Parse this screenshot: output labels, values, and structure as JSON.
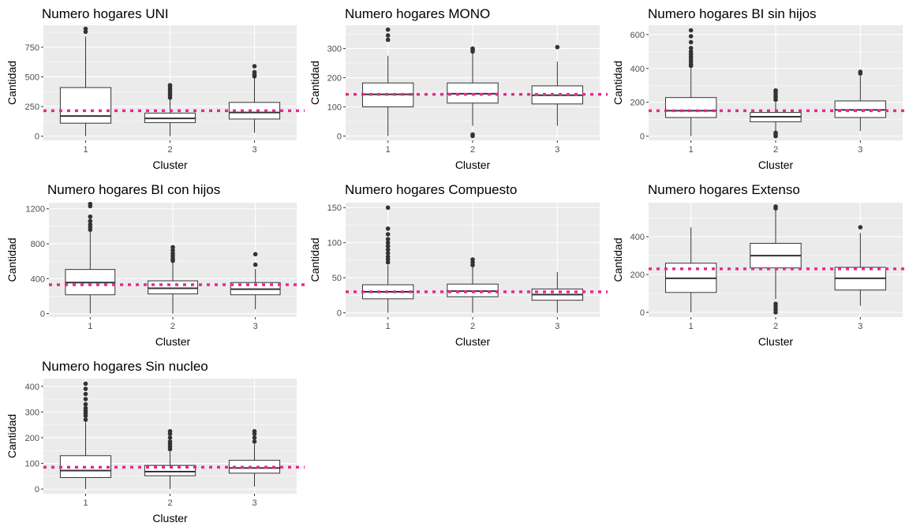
{
  "colors": {
    "panel_bg": "#ebebeb",
    "grid_major": "#ffffff",
    "box_fill": "#ffffff",
    "box_line": "#333333",
    "outlier": "#333333",
    "mean_line": "#e7298a",
    "tick_text": "#4d4d4d"
  },
  "chart_data": [
    {
      "type": "boxplot",
      "title": "Numero hogares UNI",
      "xlabel": "Cluster",
      "ylabel": "Cantidad",
      "categories": [
        "1",
        "2",
        "3"
      ],
      "ylim": [
        -35,
        935
      ],
      "yticks": [
        0,
        250,
        500,
        750
      ],
      "reference_line": {
        "style": "dotted",
        "y": 215
      },
      "boxes": [
        {
          "category": "1",
          "lower_whisker": 0,
          "q1": 110,
          "median": 170,
          "q3": 410,
          "upper_whisker": 840,
          "outliers": [
            880,
            905
          ]
        },
        {
          "category": "2",
          "lower_whisker": 0,
          "q1": 115,
          "median": 150,
          "q3": 195,
          "upper_whisker": 310,
          "outliers": [
            325,
            345,
            365,
            385,
            400,
            420,
            430
          ]
        },
        {
          "category": "3",
          "lower_whisker": 30,
          "q1": 145,
          "median": 200,
          "q3": 285,
          "upper_whisker": 490,
          "outliers": [
            505,
            520,
            540,
            590
          ]
        }
      ]
    },
    {
      "type": "boxplot",
      "title": "Numero hogares MONO",
      "xlabel": "Cluster",
      "ylabel": "Cantidad",
      "categories": [
        "1",
        "2",
        "3"
      ],
      "ylim": [
        -15,
        380
      ],
      "yticks": [
        0,
        100,
        200,
        300
      ],
      "reference_line": {
        "style": "dotted",
        "y": 143
      },
      "boxes": [
        {
          "category": "1",
          "lower_whisker": 0,
          "q1": 100,
          "median": 143,
          "q3": 182,
          "upper_whisker": 275,
          "outliers": [
            330,
            345,
            365
          ]
        },
        {
          "category": "2",
          "lower_whisker": 35,
          "q1": 113,
          "median": 145,
          "q3": 182,
          "upper_whisker": 285,
          "outliers": [
            0,
            5,
            290,
            295,
            300
          ]
        },
        {
          "category": "3",
          "lower_whisker": 35,
          "q1": 110,
          "median": 140,
          "q3": 172,
          "upper_whisker": 255,
          "outliers": [
            305
          ]
        }
      ]
    },
    {
      "type": "boxplot",
      "title": "Numero hogares BI sin hijos",
      "xlabel": "Cluster",
      "ylabel": "Cantidad",
      "categories": [
        "1",
        "2",
        "3"
      ],
      "ylim": [
        -25,
        655
      ],
      "yticks": [
        0,
        200,
        400,
        600
      ],
      "reference_line": {
        "style": "dotted",
        "y": 150
      },
      "boxes": [
        {
          "category": "1",
          "lower_whisker": 0,
          "q1": 110,
          "median": 150,
          "q3": 228,
          "upper_whisker": 400,
          "outliers": [
            415,
            425,
            440,
            455,
            470,
            485,
            500,
            520,
            555,
            590,
            625
          ]
        },
        {
          "category": "2",
          "lower_whisker": 30,
          "q1": 85,
          "median": 115,
          "q3": 140,
          "upper_whisker": 200,
          "outliers": [
            0,
            10,
            20,
            215,
            230,
            245,
            260,
            270
          ]
        },
        {
          "category": "3",
          "lower_whisker": 30,
          "q1": 110,
          "median": 155,
          "q3": 208,
          "upper_whisker": 355,
          "outliers": [
            370,
            380
          ]
        }
      ]
    },
    {
      "type": "boxplot",
      "title": "Numero hogares BI con hijos",
      "xlabel": "Cluster",
      "ylabel": "Cantidad",
      "categories": [
        "1",
        "2",
        "3"
      ],
      "ylim": [
        -40,
        1270
      ],
      "yticks": [
        0,
        400,
        800,
        1200
      ],
      "reference_line": {
        "style": "dotted",
        "y": 330
      },
      "boxes": [
        {
          "category": "1",
          "lower_whisker": 0,
          "q1": 215,
          "median": 355,
          "q3": 505,
          "upper_whisker": 935,
          "outliers": [
            960,
            990,
            1020,
            1060,
            1110,
            1230,
            1255
          ]
        },
        {
          "category": "2",
          "lower_whisker": 0,
          "q1": 225,
          "median": 290,
          "q3": 375,
          "upper_whisker": 590,
          "outliers": [
            605,
            630,
            660,
            690,
            725,
            760
          ]
        },
        {
          "category": "3",
          "lower_whisker": 50,
          "q1": 215,
          "median": 280,
          "q3": 355,
          "upper_whisker": 510,
          "outliers": [
            560,
            680
          ]
        }
      ]
    },
    {
      "type": "boxplot",
      "title": "Numero hogares Compuesto",
      "xlabel": "Cluster",
      "ylabel": "Cantidad",
      "categories": [
        "1",
        "2",
        "3"
      ],
      "ylim": [
        -6,
        157
      ],
      "yticks": [
        0,
        50,
        100,
        150
      ],
      "reference_line": {
        "style": "dotted",
        "y": 30
      },
      "boxes": [
        {
          "category": "1",
          "lower_whisker": 0,
          "q1": 20,
          "median": 30,
          "q3": 40,
          "upper_whisker": 68,
          "outliers": [
            72,
            76,
            80,
            85,
            90,
            95,
            100,
            105,
            112,
            120,
            150
          ]
        },
        {
          "category": "2",
          "lower_whisker": 0,
          "q1": 23,
          "median": 31,
          "q3": 41,
          "upper_whisker": 65,
          "outliers": [
            68,
            72,
            76
          ]
        },
        {
          "category": "3",
          "lower_whisker": 0,
          "q1": 18,
          "median": 26,
          "q3": 34,
          "upper_whisker": 58,
          "outliers": []
        }
      ]
    },
    {
      "type": "boxplot",
      "title": "Numero hogares Extenso",
      "xlabel": "Cluster",
      "ylabel": "Cantidad",
      "categories": [
        "1",
        "2",
        "3"
      ],
      "ylim": [
        -25,
        580
      ],
      "yticks": [
        0,
        200,
        400
      ],
      "reference_line": {
        "style": "dotted",
        "y": 230
      },
      "boxes": [
        {
          "category": "1",
          "lower_whisker": 0,
          "q1": 105,
          "median": 180,
          "q3": 260,
          "upper_whisker": 450,
          "outliers": []
        },
        {
          "category": "2",
          "lower_whisker": 70,
          "q1": 235,
          "median": 300,
          "q3": 365,
          "upper_whisker": 540,
          "outliers": [
            0,
            15,
            30,
            45,
            550,
            560
          ]
        },
        {
          "category": "3",
          "lower_whisker": 35,
          "q1": 118,
          "median": 180,
          "q3": 238,
          "upper_whisker": 420,
          "outliers": [
            450
          ]
        }
      ]
    },
    {
      "type": "boxplot",
      "title": "Numero hogares Sin nucleo",
      "xlabel": "Cluster",
      "ylabel": "Cantidad",
      "categories": [
        "1",
        "2",
        "3"
      ],
      "ylim": [
        -18,
        430
      ],
      "yticks": [
        0,
        100,
        200,
        300,
        400
      ],
      "reference_line": {
        "style": "dotted",
        "y": 85
      },
      "boxes": [
        {
          "category": "1",
          "lower_whisker": 0,
          "q1": 45,
          "median": 72,
          "q3": 130,
          "upper_whisker": 260,
          "outliers": [
            270,
            285,
            295,
            305,
            315,
            330,
            350,
            370,
            390,
            410
          ]
        },
        {
          "category": "2",
          "lower_whisker": 0,
          "q1": 52,
          "median": 68,
          "q3": 92,
          "upper_whisker": 145,
          "outliers": [
            155,
            165,
            175,
            185,
            200,
            215,
            225
          ]
        },
        {
          "category": "3",
          "lower_whisker": 10,
          "q1": 62,
          "median": 82,
          "q3": 112,
          "upper_whisker": 175,
          "outliers": [
            185,
            200,
            215,
            225
          ]
        }
      ]
    }
  ]
}
